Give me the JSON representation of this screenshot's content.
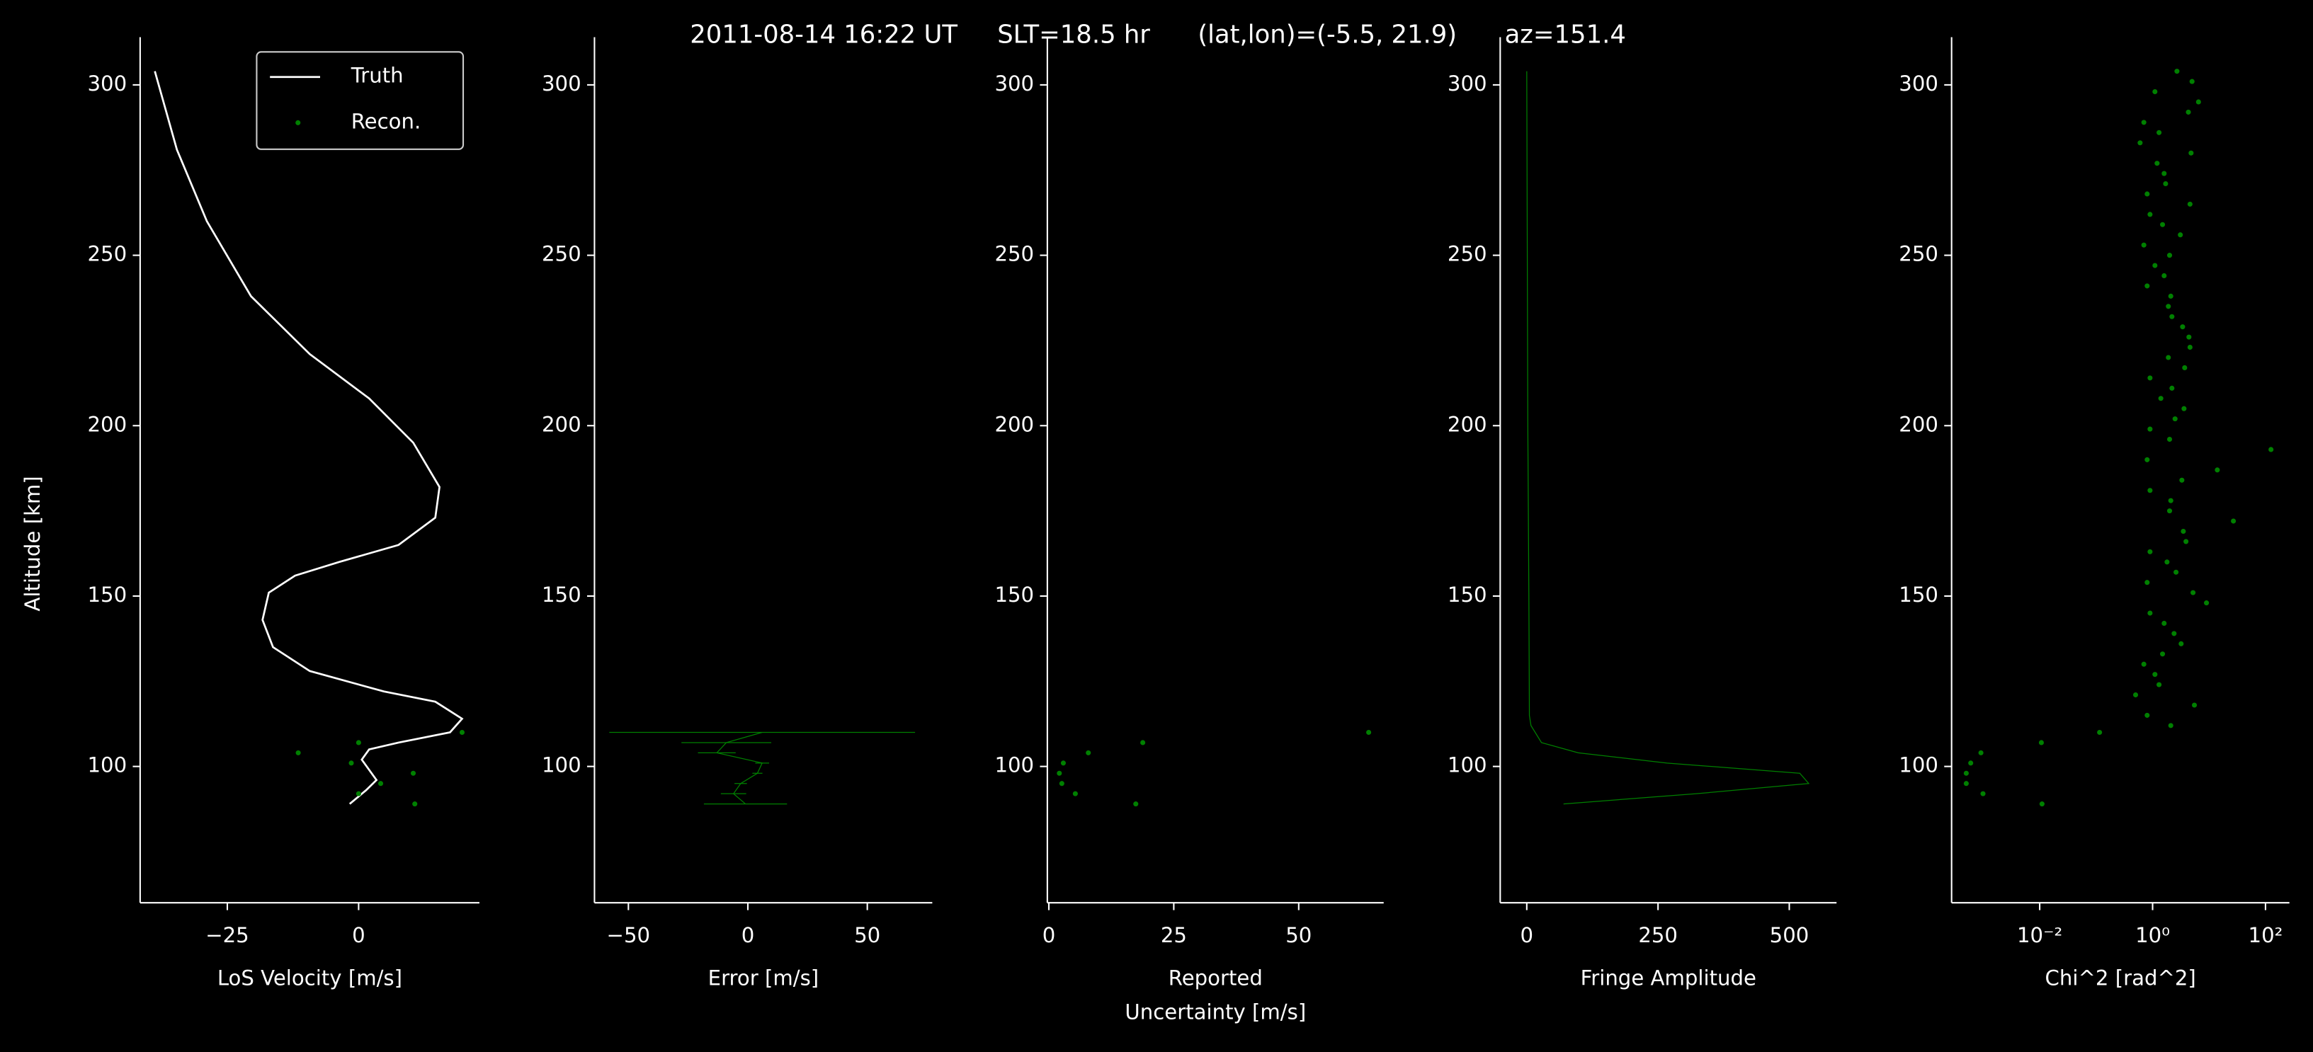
{
  "title": "2011-08-14 16:22 UT     SLT=18.5 hr      (lat,lon)=(-5.5, 21.9)      az=151.4",
  "chart_data": [
    {
      "type": "line",
      "xlabel": "LoS Velocity [m/s]",
      "ylabel": "Altitude [km]",
      "xlim": [
        -41.6,
        23
      ],
      "xticks": [
        {
          "value": -25,
          "label": "−25"
        },
        0
      ],
      "ylim": [
        60,
        314
      ],
      "yticks": [
        100,
        150,
        200,
        250,
        300
      ],
      "legend": "upper right",
      "series": [
        {
          "name": "Truth",
          "color": "#ffffff",
          "style": "line",
          "x": [
            -38.8,
            -34.6,
            -28.9,
            -20.5,
            -9.3,
            2,
            10.4,
            15.4,
            14.6,
            7.6,
            -3.7,
            -12.1,
            -17.1,
            -18.3,
            -16.3,
            -9.3,
            4.8,
            14.6,
            19.7,
            17.4,
            7.6,
            2,
            0.6,
            3.4,
            1.4,
            -1.7
          ],
          "y": [
            304,
            281,
            260,
            238,
            221,
            208,
            195,
            182,
            173,
            165,
            160,
            156,
            151,
            143,
            135,
            128,
            122,
            119,
            114,
            110,
            107,
            105,
            102,
            96,
            93,
            89
          ]
        },
        {
          "name": "Recon.",
          "color": "#008000",
          "style": "markers",
          "x": [
            10.7,
            0,
            4.2,
            10.4,
            -1.4,
            -11.5,
            0,
            19.7
          ],
          "y": [
            89,
            92,
            95,
            98,
            101,
            104,
            107,
            110
          ]
        }
      ]
    },
    {
      "type": "errorbar",
      "xlabel": "Error [m/s]",
      "xlim": [
        -64.2,
        77.2
      ],
      "xticks": [
        {
          "value": -50,
          "label": "−50"
        },
        0,
        50
      ],
      "ylim": [
        60,
        314
      ],
      "yticks": [
        100,
        150,
        200,
        250,
        300
      ],
      "series": [
        {
          "color": "#008000",
          "style": "errorbar",
          "x": [
            -1,
            -6,
            -3,
            4,
            6,
            -13,
            -9,
            6
          ],
          "errors": [
            17.4,
            5.3,
            2.6,
            2.1,
            2.9,
            7.9,
            18.8,
            64
          ],
          "y": [
            89,
            92,
            95,
            98,
            101,
            104,
            107,
            110
          ]
        }
      ]
    },
    {
      "type": "scatter",
      "xlabel": [
        "Reported",
        "Uncertainty [m/s]"
      ],
      "xlim": [
        -0.3,
        67
      ],
      "xticks": [
        0,
        25,
        50
      ],
      "ylim": [
        60,
        314
      ],
      "yticks": [
        100,
        150,
        200,
        250,
        300
      ],
      "series": [
        {
          "color": "#008000",
          "style": "markers",
          "x": [
            17.4,
            5.3,
            2.6,
            2.1,
            2.9,
            7.9,
            18.8,
            64
          ],
          "y": [
            89,
            92,
            95,
            98,
            101,
            104,
            107,
            110
          ]
        }
      ]
    },
    {
      "type": "line",
      "xlabel": "Fringe Amplitude",
      "xlim": [
        -50.6,
        590
      ],
      "xticks": [
        0,
        250,
        500
      ],
      "ylim": [
        60,
        314
      ],
      "yticks": [
        100,
        150,
        200,
        250,
        300
      ],
      "series": [
        {
          "color": "#008000",
          "style": "line",
          "x": [
            0,
            1,
            2,
            4,
            5,
            8,
            28,
            98,
            267,
            520,
            537,
            323,
            70
          ],
          "y": [
            304,
            250,
            200,
            150,
            115,
            112,
            107,
            104,
            101,
            98,
            95,
            92,
            89
          ]
        }
      ]
    },
    {
      "type": "scatter",
      "xlabel": "Chi^2 [rad^2]",
      "xscale": "log",
      "xlim": [
        0.000275,
        265
      ],
      "xticks": [
        {
          "value": 0.01,
          "label": "10⁻²"
        },
        {
          "value": 1,
          "label": "10⁰"
        },
        {
          "value": 100,
          "label": "10²"
        }
      ],
      "ylim": [
        60,
        314
      ],
      "yticks": [
        100,
        150,
        200,
        250,
        300
      ],
      "series": [
        {
          "color": "#008000",
          "style": "markers",
          "x": [
            0.011,
            0.00099,
            0.0005,
            0.0005,
            0.0006,
            0.00091,
            0.0107,
            0.115,
            2.1,
            0.8,
            5.5,
            0.5,
            1.3,
            1.1,
            0.7,
            1.5,
            3.2,
            2.4,
            1.6,
            0.9,
            9.0,
            5.2,
            0.8,
            2.6,
            1.8,
            0.9,
            3.9,
            3.5,
            27,
            2.0,
            2.1,
            0.9,
            3.3,
            14,
            0.8,
            125,
            2.0,
            0.9,
            2.5,
            3.6,
            1.4,
            2.2,
            0.9,
            3.7,
            1.9,
            4.6,
            4.4,
            3.4,
            2.2,
            1.9,
            2.1,
            0.8,
            1.6,
            1.1,
            2.0,
            0.7,
            3.1,
            1.5,
            0.9,
            4.6,
            0.8,
            1.7,
            1.6,
            1.2,
            4.8,
            0.6,
            1.3,
            0.7,
            4.3,
            6.5,
            1.1,
            5.0,
            2.7
          ],
          "y": [
            89,
            92,
            95,
            98,
            101,
            104,
            107,
            110,
            112,
            115,
            118,
            121,
            124,
            127,
            130,
            133,
            136,
            139,
            142,
            145,
            148,
            151,
            154,
            157,
            160,
            163,
            166,
            169,
            172,
            175,
            178,
            181,
            184,
            187,
            190,
            193,
            196,
            199,
            202,
            205,
            208,
            211,
            214,
            217,
            220,
            223,
            226,
            229,
            232,
            235,
            238,
            241,
            244,
            247,
            250,
            253,
            256,
            259,
            262,
            265,
            268,
            271,
            274,
            277,
            280,
            283,
            286,
            289,
            292,
            295,
            298,
            301,
            304
          ]
        }
      ]
    }
  ]
}
